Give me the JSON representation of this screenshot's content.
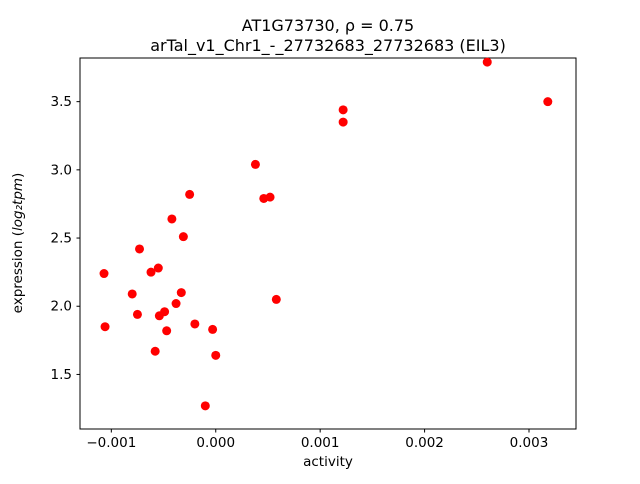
{
  "title": {
    "line1": "AT1G73730, ρ = 0.75",
    "line2": "arTal_v1_Chr1_-_27732683_27732683 (EIL3)"
  },
  "chart_data": {
    "type": "scatter",
    "title": "AT1G73730, ρ = 0.75",
    "subtitle": "arTal_v1_Chr1_-_27732683_27732683 (EIL3)",
    "xlabel": "activity",
    "ylabel": "expression (log₂tpm)",
    "ylabel_parts": {
      "prefix": "expression (",
      "math": "log₂tpm",
      "suffix": ")"
    },
    "xlim": [
      -0.0013,
      0.00345
    ],
    "ylim": [
      1.1,
      3.82
    ],
    "xticks": [
      -0.001,
      0.0,
      0.001,
      0.002,
      0.003
    ],
    "xtick_labels": [
      "−0.001",
      "0.000",
      "0.001",
      "0.002",
      "0.003"
    ],
    "yticks": [
      1.5,
      2.0,
      2.5,
      3.0,
      3.5
    ],
    "ytick_labels": [
      "1.5",
      "2.0",
      "2.5",
      "3.0",
      "3.5"
    ],
    "legend": "none",
    "grid": false,
    "marker_color": "#ff0000",
    "points": [
      [
        -0.00107,
        2.24
      ],
      [
        -0.00106,
        1.85
      ],
      [
        -0.0008,
        2.09
      ],
      [
        -0.00073,
        2.42
      ],
      [
        -0.00075,
        1.94
      ],
      [
        -0.00062,
        2.25
      ],
      [
        -0.00055,
        2.28
      ],
      [
        -0.00058,
        1.67
      ],
      [
        -0.00054,
        1.93
      ],
      [
        -0.00049,
        1.96
      ],
      [
        -0.00047,
        1.82
      ],
      [
        -0.00042,
        2.64
      ],
      [
        -0.00038,
        2.02
      ],
      [
        -0.00031,
        2.51
      ],
      [
        -0.00033,
        2.1
      ],
      [
        -0.00025,
        2.82
      ],
      [
        -0.0002,
        1.87
      ],
      [
        -0.0001,
        1.27
      ],
      [
        -3e-05,
        1.83
      ],
      [
        0.0,
        1.64
      ],
      [
        0.00038,
        3.04
      ],
      [
        0.00046,
        2.79
      ],
      [
        0.00052,
        2.8
      ],
      [
        0.00058,
        2.05
      ],
      [
        0.00122,
        3.44
      ],
      [
        0.00122,
        3.35
      ],
      [
        0.0026,
        3.79
      ],
      [
        0.00318,
        3.5
      ]
    ]
  }
}
